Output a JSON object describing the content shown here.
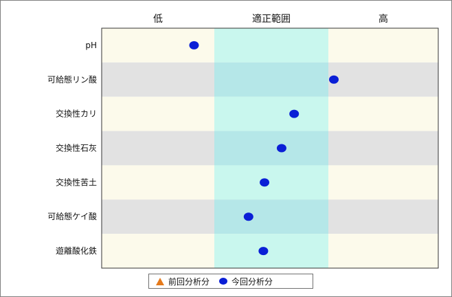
{
  "chart_data": {
    "type": "scatter",
    "zones": [
      "低",
      "適正範囲",
      "高"
    ],
    "categories": [
      "pH",
      "可給態リン酸",
      "交換性カリ",
      "交換性石灰",
      "交換性苦土",
      "可給態ケイ酸",
      "遊離酸化鉄"
    ],
    "series": [
      {
        "name": "前回分析分",
        "marker": "triangle",
        "color": "#e57a1b",
        "values": []
      },
      {
        "name": "今回分析分",
        "marker": "circle",
        "color": "#0a1fd6",
        "values": [
          0.82,
          2.05,
          1.7,
          1.59,
          1.44,
          1.3,
          1.43
        ]
      }
    ],
    "xlim": [
      0,
      3
    ],
    "row_colors": [
      "#fcfaeb",
      "#e2e2e2"
    ],
    "middle_zone_color": "#c9f7ee",
    "middle_zone_alt_color": "#b5e7e8",
    "legend_position": "bottom"
  },
  "legend": {
    "prev_label": "前回分析分",
    "curr_label": "今回分析分"
  }
}
